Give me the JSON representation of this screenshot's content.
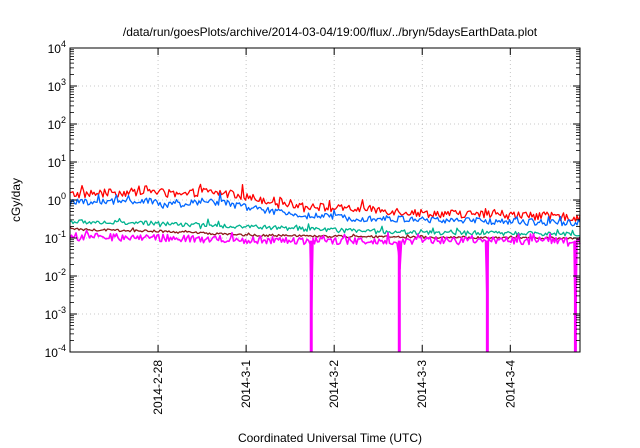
{
  "chart_data": {
    "type": "line",
    "title": "/data/run/goesPlots/archive/2014-03-04/19:00/flux/../bryn/5daysEarthData.plot",
    "xlabel": "Coordinated Universal Time (UTC)",
    "ylabel": "cGy/day",
    "y_scale": "log",
    "ylim": [
      0.0001,
      10000
    ],
    "xlim": [
      "2014-02-27T00:00",
      "2014-03-04T19:00"
    ],
    "y_ticks": [
      {
        "value": 0.0001,
        "base": "10",
        "exp": "-4"
      },
      {
        "value": 0.001,
        "base": "10",
        "exp": "-3"
      },
      {
        "value": 0.01,
        "base": "10",
        "exp": "-2"
      },
      {
        "value": 0.1,
        "base": "10",
        "exp": "-1"
      },
      {
        "value": 1,
        "base": "10",
        "exp": "0"
      },
      {
        "value": 10,
        "base": "10",
        "exp": "1"
      },
      {
        "value": 100,
        "base": "10",
        "exp": "2"
      },
      {
        "value": 1000,
        "base": "10",
        "exp": "3"
      },
      {
        "value": 10000,
        "base": "10",
        "exp": "4"
      }
    ],
    "x_ticks": [
      {
        "value": "2014-02-28T00:00",
        "label": "2014-2-28"
      },
      {
        "value": "2014-03-01T00:00",
        "label": "2014-3-1"
      },
      {
        "value": "2014-03-02T00:00",
        "label": "2014-3-2"
      },
      {
        "value": "2014-03-03T00:00",
        "label": "2014-3-3"
      },
      {
        "value": "2014-03-04T00:00",
        "label": "2014-3-4"
      }
    ],
    "grid": true,
    "series": [
      {
        "color": "#ff0000",
        "noise": 0.22,
        "points": [
          {
            "x": "2014-02-27T00:00",
            "y": 1.4
          },
          {
            "x": "2014-02-27T18:00",
            "y": 1.6
          },
          {
            "x": "2014-02-27T20:00",
            "y": 1.9
          },
          {
            "x": "2014-02-28T06:00",
            "y": 1.3
          },
          {
            "x": "2014-02-28T12:00",
            "y": 1.7
          },
          {
            "x": "2014-02-28T18:00",
            "y": 1.5
          },
          {
            "x": "2014-03-01T00:00",
            "y": 1.2
          },
          {
            "x": "2014-03-01T12:00",
            "y": 0.8
          },
          {
            "x": "2014-03-02T00:00",
            "y": 0.6
          },
          {
            "x": "2014-03-02T12:00",
            "y": 0.55
          },
          {
            "x": "2014-03-03T00:00",
            "y": 0.45
          },
          {
            "x": "2014-03-04T00:00",
            "y": 0.4
          },
          {
            "x": "2014-03-04T19:00",
            "y": 0.35
          }
        ]
      },
      {
        "color": "#0066ff",
        "noise": 0.18,
        "points": [
          {
            "x": "2014-02-27T00:00",
            "y": 0.85
          },
          {
            "x": "2014-02-27T20:00",
            "y": 0.95
          },
          {
            "x": "2014-02-28T06:00",
            "y": 0.7
          },
          {
            "x": "2014-02-28T12:00",
            "y": 0.95
          },
          {
            "x": "2014-02-28T18:00",
            "y": 0.85
          },
          {
            "x": "2014-03-01T00:00",
            "y": 0.65
          },
          {
            "x": "2014-03-01T12:00",
            "y": 0.42
          },
          {
            "x": "2014-03-02T00:00",
            "y": 0.35
          },
          {
            "x": "2014-03-03T00:00",
            "y": 0.3
          },
          {
            "x": "2014-03-04T00:00",
            "y": 0.27
          },
          {
            "x": "2014-03-04T19:00",
            "y": 0.25
          }
        ]
      },
      {
        "color": "#00b38f",
        "noise": 0.12,
        "points": [
          {
            "x": "2014-02-27T00:00",
            "y": 0.27
          },
          {
            "x": "2014-02-28T00:00",
            "y": 0.24
          },
          {
            "x": "2014-03-01T00:00",
            "y": 0.2
          },
          {
            "x": "2014-03-02T00:00",
            "y": 0.16
          },
          {
            "x": "2014-03-03T00:00",
            "y": 0.14
          },
          {
            "x": "2014-03-04T00:00",
            "y": 0.13
          },
          {
            "x": "2014-03-04T19:00",
            "y": 0.13
          }
        ]
      },
      {
        "color": "#8b1a1a",
        "noise": 0.06,
        "points": [
          {
            "x": "2014-02-27T00:00",
            "y": 0.17
          },
          {
            "x": "2014-02-28T00:00",
            "y": 0.15
          },
          {
            "x": "2014-03-01T00:00",
            "y": 0.12
          },
          {
            "x": "2014-03-02T00:00",
            "y": 0.11
          },
          {
            "x": "2014-03-03T00:00",
            "y": 0.105
          },
          {
            "x": "2014-03-04T00:00",
            "y": 0.1
          },
          {
            "x": "2014-03-04T19:00",
            "y": 0.1
          }
        ]
      },
      {
        "color": "#ff00ff",
        "noise": 0.2,
        "points": [
          {
            "x": "2014-02-27T00:00",
            "y": 0.11
          },
          {
            "x": "2014-02-28T00:00",
            "y": 0.1
          },
          {
            "x": "2014-03-01T00:00",
            "y": 0.09
          },
          {
            "x": "2014-03-01T17:30",
            "y": 0.085
          },
          {
            "x": "2014-03-01T17:45",
            "y": 0.0001
          },
          {
            "x": "2014-03-01T18:00",
            "y": 0.085
          },
          {
            "x": "2014-03-02T17:30",
            "y": 0.085
          },
          {
            "x": "2014-03-02T17:45",
            "y": 0.0001
          },
          {
            "x": "2014-03-02T18:00",
            "y": 0.085
          },
          {
            "x": "2014-03-03T17:30",
            "y": 0.085
          },
          {
            "x": "2014-03-03T17:45",
            "y": 0.0001
          },
          {
            "x": "2014-03-03T18:00",
            "y": 0.085
          },
          {
            "x": "2014-03-04T17:30",
            "y": 0.085
          },
          {
            "x": "2014-03-04T17:45",
            "y": 0.0001
          },
          {
            "x": "2014-03-04T18:00",
            "y": 0.085
          },
          {
            "x": "2014-03-04T19:00",
            "y": 0.085
          }
        ]
      }
    ]
  }
}
